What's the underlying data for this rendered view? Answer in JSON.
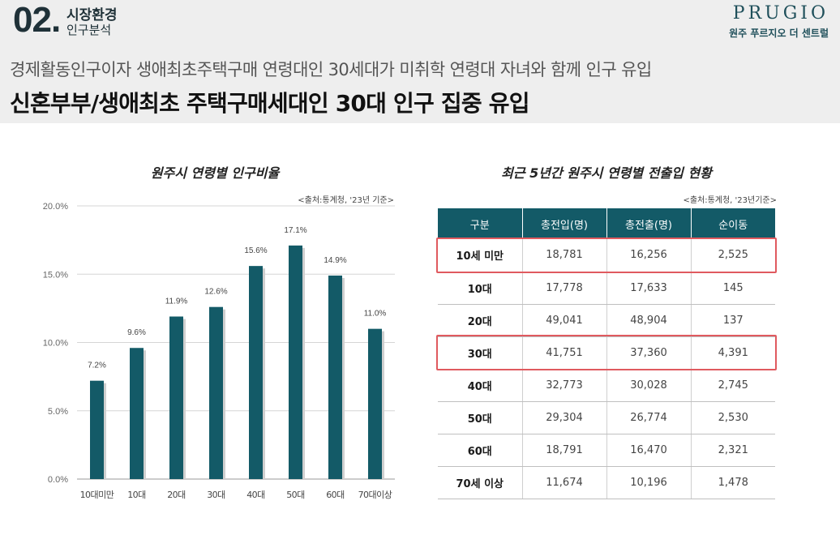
{
  "header": {
    "section_number": "02.",
    "section_title": "시장환경",
    "section_subtitle": "인구분석",
    "brand": "PRUGIO",
    "brand_sub": "원주 푸르지오 더 센트럴",
    "subheadline": "경제활동인구이자 생애최초주택구매 연령대인 30세대가 미취학 연령대 자녀와 함께 인구 유입",
    "headline": "신혼부부/생애최초 주택구매세대인 30대 인구 집중 유입"
  },
  "chart_data": {
    "type": "bar",
    "title": "원주시 연령별 인구비율",
    "source": "<출처:통계청, '23년 기준>",
    "categories": [
      "10대미만",
      "10대",
      "20대",
      "30대",
      "40대",
      "50대",
      "60대",
      "70대이상"
    ],
    "values": [
      7.2,
      9.6,
      11.9,
      12.6,
      15.6,
      17.1,
      14.9,
      11.0
    ],
    "value_labels": [
      "7.2%",
      "9.6%",
      "11.9%",
      "12.6%",
      "15.6%",
      "17.1%",
      "14.9%",
      "11.0%"
    ],
    "ylim": [
      0,
      20
    ],
    "yticks": [
      "0.0%",
      "5.0%",
      "10.0%",
      "15.0%",
      "20.0%"
    ],
    "grid": true,
    "bar_color": "#135a67"
  },
  "table": {
    "title": "최근 5년간 원주시 연령별 전출입 현황",
    "source": "<출처:통계청, '23년기준>",
    "headers": [
      "구분",
      "총전입(명)",
      "총전출(명)",
      "순이동"
    ],
    "rows": [
      [
        "10세 미만",
        "18,781",
        "16,256",
        "2,525"
      ],
      [
        "10대",
        "17,778",
        "17,633",
        "145"
      ],
      [
        "20대",
        "49,041",
        "48,904",
        "137"
      ],
      [
        "30대",
        "41,751",
        "37,360",
        "4,391"
      ],
      [
        "40대",
        "32,773",
        "30,028",
        "2,745"
      ],
      [
        "50대",
        "29,304",
        "26,774",
        "2,530"
      ],
      [
        "60대",
        "18,791",
        "16,470",
        "2,321"
      ],
      [
        "70세 이상",
        "11,674",
        "10,196",
        "1,478"
      ]
    ],
    "highlighted_rows": [
      "10세 미만",
      "30대"
    ],
    "header_color": "#135a67",
    "highlight_color": "#e05a5f"
  }
}
